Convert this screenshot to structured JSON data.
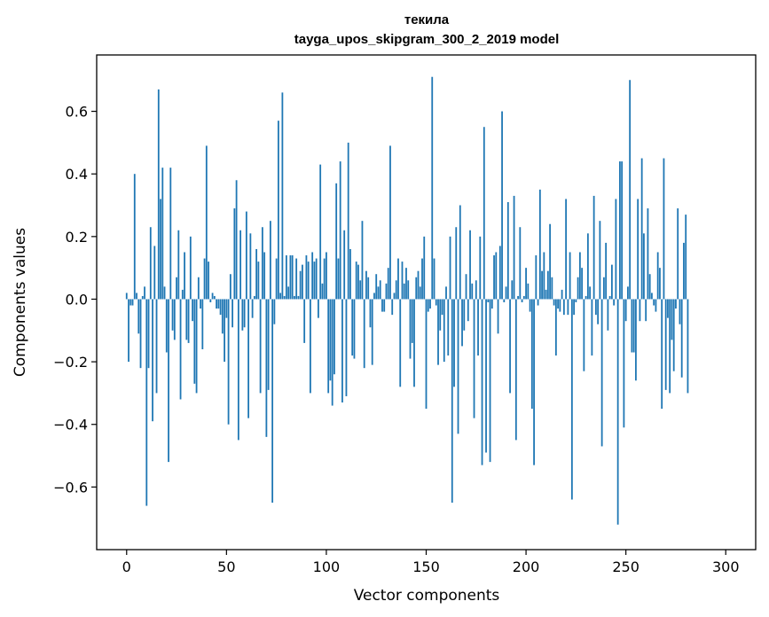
{
  "chart_data": {
    "type": "bar",
    "title": "текила",
    "subtitle": "tayga_upos_skipgram_300_2_2019 model",
    "xlabel": "Vector components",
    "ylabel": "Components values",
    "xlim": [
      -15,
      315
    ],
    "ylim": [
      -0.8,
      0.78
    ],
    "xticks": [
      0,
      50,
      100,
      150,
      200,
      250,
      300
    ],
    "yticks": [
      -0.6,
      -0.4,
      -0.2,
      0.0,
      0.2,
      0.4,
      0.6
    ],
    "xtick_labels": [
      "0",
      "50",
      "100",
      "150",
      "200",
      "250",
      "300"
    ],
    "ytick_labels": [
      "−0.6",
      "−0.4",
      "−0.2",
      "0.0",
      "0.2",
      "0.4",
      "0.6"
    ],
    "grid": false,
    "bar_color": "#1f77b4",
    "values": [
      0.02,
      -0.2,
      -0.02,
      -0.02,
      0.4,
      0.02,
      -0.11,
      -0.22,
      0.01,
      0.04,
      -0.66,
      -0.22,
      0.23,
      -0.39,
      0.17,
      -0.3,
      0.67,
      0.32,
      0.42,
      0.04,
      -0.17,
      -0.52,
      0.42,
      -0.1,
      -0.13,
      0.07,
      0.22,
      -0.32,
      0.03,
      0.15,
      -0.13,
      -0.14,
      0.2,
      -0.07,
      -0.27,
      -0.3,
      0.07,
      -0.03,
      -0.16,
      0.13,
      0.49,
      0.12,
      -0.01,
      0.02,
      0.01,
      -0.03,
      -0.03,
      -0.05,
      -0.11,
      -0.2,
      -0.06,
      -0.4,
      0.08,
      -0.09,
      0.29,
      0.38,
      -0.45,
      0.22,
      -0.1,
      -0.09,
      0.28,
      -0.38,
      0.21,
      -0.06,
      0.01,
      0.16,
      0.12,
      -0.3,
      0.23,
      0.15,
      -0.44,
      -0.29,
      0.25,
      -0.65,
      -0.08,
      0.13,
      0.57,
      0.02,
      0.66,
      0.01,
      0.14,
      0.04,
      0.14,
      0.14,
      0.01,
      0.13,
      0.01,
      0.09,
      0.11,
      -0.14,
      0.14,
      0.12,
      -0.3,
      0.15,
      0.12,
      0.13,
      -0.06,
      0.43,
      0.05,
      0.13,
      0.15,
      -0.3,
      -0.26,
      -0.34,
      -0.24,
      0.37,
      0.13,
      0.44,
      -0.33,
      0.22,
      -0.31,
      0.5,
      0.16,
      -0.18,
      -0.19,
      0.12,
      0.11,
      0.06,
      0.25,
      -0.22,
      0.09,
      0.07,
      -0.09,
      -0.21,
      0.02,
      0.08,
      0.04,
      0.06,
      -0.04,
      -0.04,
      0.05,
      0.1,
      0.49,
      -0.05,
      0.02,
      0.06,
      0.13,
      -0.28,
      0.12,
      0.05,
      0.1,
      0.06,
      -0.19,
      -0.14,
      -0.28,
      0.07,
      0.09,
      0.04,
      0.13,
      0.2,
      -0.35,
      -0.04,
      -0.03,
      0.71,
      0.13,
      -0.02,
      -0.21,
      -0.1,
      -0.05,
      -0.2,
      0.04,
      -0.18,
      0.2,
      -0.65,
      -0.28,
      0.23,
      -0.43,
      0.3,
      -0.15,
      -0.1,
      0.08,
      -0.07,
      0.22,
      0.05,
      -0.38,
      0.06,
      -0.18,
      0.2,
      -0.53,
      0.55,
      -0.49,
      -0.01,
      -0.52,
      -0.03,
      0.14,
      0.15,
      -0.11,
      0.17,
      0.6,
      -0.01,
      0.04,
      0.31,
      -0.3,
      0.06,
      0.33,
      -0.45,
      0.01,
      0.23,
      -0.01,
      0.01,
      0.1,
      0.05,
      -0.04,
      -0.35,
      -0.53,
      0.14,
      -0.02,
      0.35,
      0.09,
      0.15,
      0.03,
      0.09,
      0.24,
      0.07,
      -0.02,
      -0.18,
      -0.03,
      -0.04,
      0.03,
      -0.05,
      0.32,
      -0.05,
      0.15,
      -0.64,
      -0.05,
      -0.01,
      0.07,
      0.15,
      0.1,
      -0.23,
      0.01,
      0.21,
      0.04,
      -0.18,
      0.33,
      -0.05,
      -0.08,
      0.25,
      -0.47,
      0.07,
      0.18,
      -0.1,
      0.01,
      0.11,
      -0.02,
      0.32,
      -0.72,
      0.44,
      0.44,
      -0.41,
      -0.07,
      0.04,
      0.7,
      -0.17,
      -0.17,
      -0.26,
      0.32,
      -0.07,
      0.45,
      0.21,
      -0.07,
      0.29,
      0.08,
      0.02,
      -0.02,
      -0.04,
      0.15,
      0.1,
      -0.35,
      0.45,
      -0.29,
      -0.06,
      -0.3,
      -0.13,
      -0.23,
      -0.03,
      0.29,
      -0.08,
      -0.25,
      0.18,
      0.27,
      -0.3
    ]
  }
}
